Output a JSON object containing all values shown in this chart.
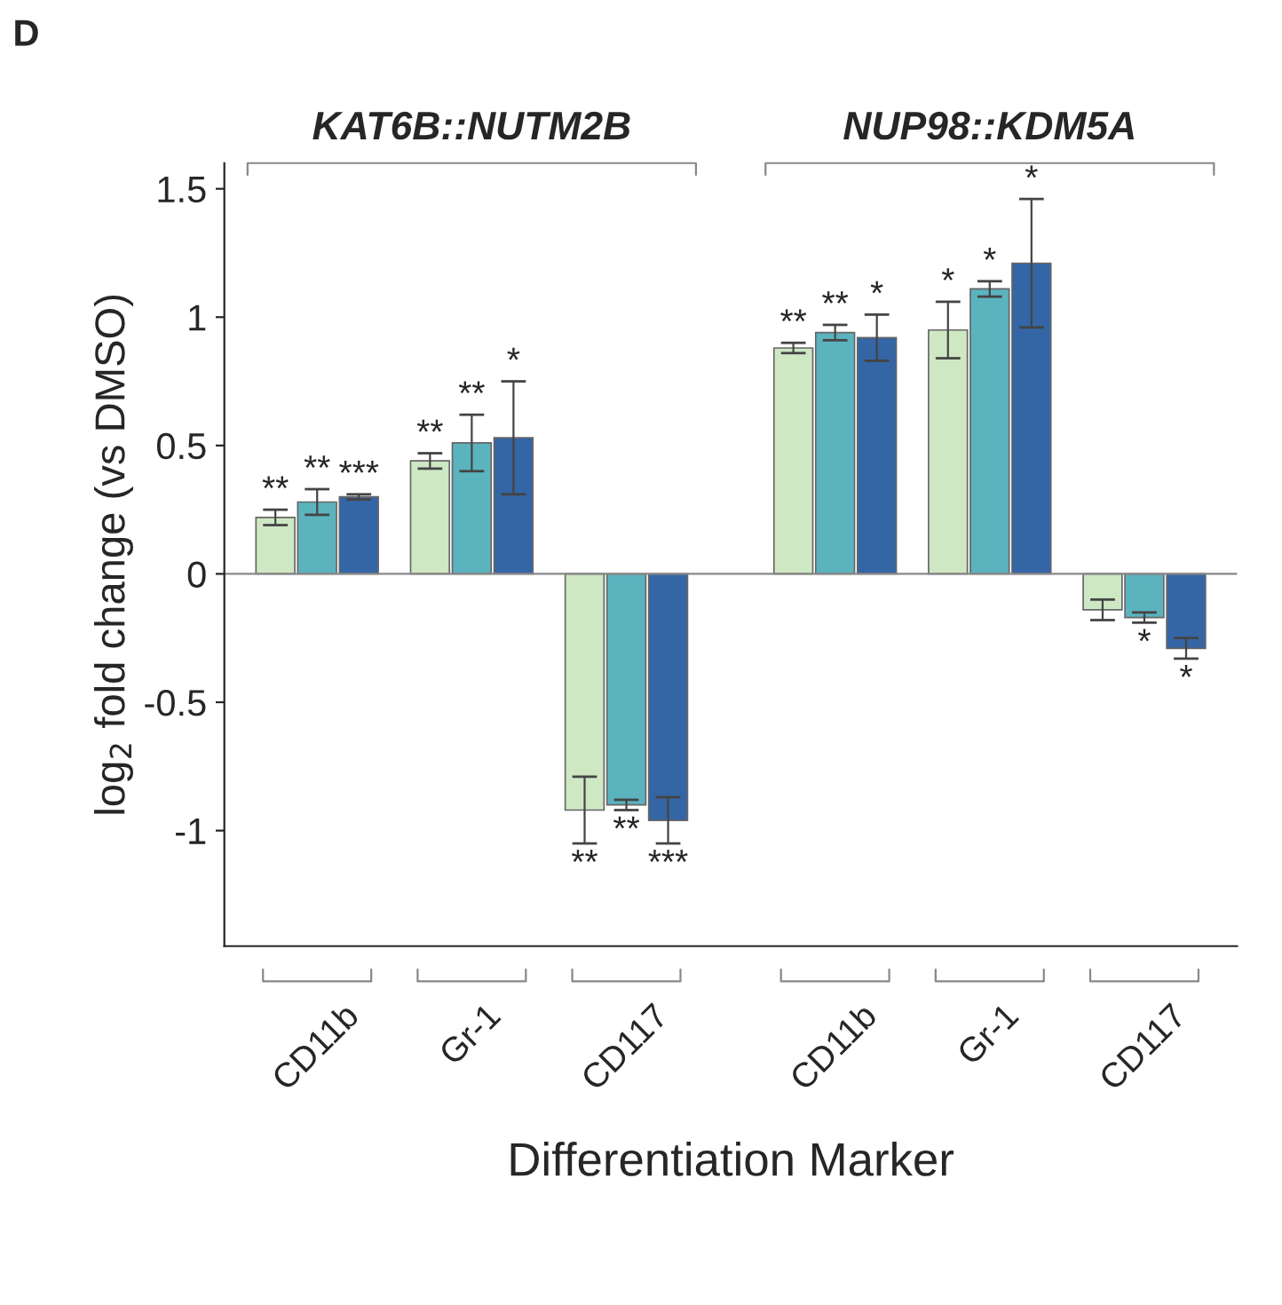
{
  "chart_data": {
    "type": "bar",
    "xlabel": "Differentiation Marker",
    "ylabel": "log$_{2}$ fold change (vs DMSO)",
    "categories": [
      "CD11b",
      "Gr-1",
      "CD117",
      "CD11b",
      "Gr-1",
      "CD117"
    ],
    "series": [
      {
        "color": "#cfe8c4",
        "values": [
          0.22,
          0.44,
          -0.92,
          0.88,
          0.95,
          -0.14
        ],
        "errors": [
          0.03,
          0.03,
          0.13,
          0.02,
          0.11,
          0.04
        ],
        "value_labels": [
          "**",
          "**",
          "**",
          "**",
          "*",
          null
        ]
      },
      {
        "color": "#5bb3be",
        "values": [
          0.28,
          0.51,
          -0.9,
          0.94,
          1.11,
          -0.17
        ],
        "errors": [
          0.05,
          0.11,
          0.02,
          0.03,
          0.03,
          0.02
        ],
        "value_labels": [
          "**",
          "**",
          "**",
          "**",
          "*",
          "*"
        ]
      },
      {
        "color": "#3465a5",
        "values": [
          0.3,
          0.53,
          -0.96,
          0.92,
          1.21,
          -0.29
        ],
        "errors": [
          0.01,
          0.22,
          0.09,
          0.09,
          0.25,
          0.04
        ],
        "value_labels": [
          "***",
          "*",
          "***",
          "*",
          "*",
          "*"
        ]
      }
    ],
    "ylim": [
      -1.45,
      1.6
    ],
    "yticks": [
      -1,
      -0.5,
      0,
      0.5,
      1,
      1.5
    ],
    "grid": false,
    "ref_lines": [
      {
        "axis": "y",
        "value": 0,
        "color": "#888888"
      }
    ],
    "annotations": [
      "D",
      "KAT6B::NUTM2B",
      "NUP98::KDM5A"
    ]
  }
}
